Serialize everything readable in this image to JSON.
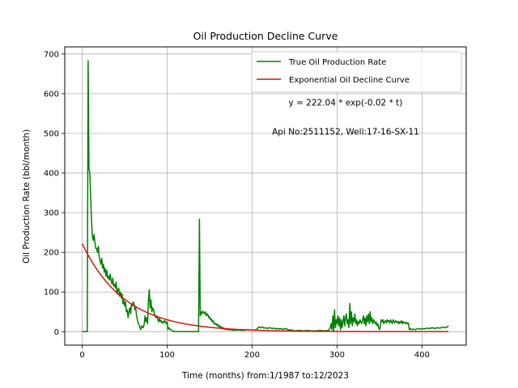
{
  "chart_data": {
    "type": "line",
    "title": "Oil Production Decline Curve",
    "xlabel": "Time (months) from:1/1987 to:12/2023",
    "ylabel": "Oil Production Rate (bbl/month)",
    "xlim": [
      -20.5,
      452
    ],
    "ylim": [
      -34,
      718
    ],
    "xticks": [
      0,
      100,
      200,
      300,
      400
    ],
    "yticks": [
      0,
      100,
      200,
      300,
      400,
      500,
      600,
      700
    ],
    "grid": true,
    "legend_position": "top-right",
    "annotations": [
      {
        "text": "y = 222.04 * exp(-0.02 * t)",
        "x": 310,
        "y": 570
      },
      {
        "text": "Api No:2511152, Well:17-16-SX-11",
        "x": 310,
        "y": 497
      }
    ],
    "series": [
      {
        "name": "True Oil Production Rate",
        "color": "#008000",
        "points": [
          [
            0,
            0
          ],
          [
            6,
            0
          ],
          [
            7,
            683
          ],
          [
            8,
            410
          ],
          [
            9,
            400
          ],
          [
            10,
            340
          ],
          [
            11,
            280
          ],
          [
            12,
            240
          ],
          [
            13,
            230
          ],
          [
            14,
            245
          ],
          [
            15,
            225
          ],
          [
            16,
            210
          ],
          [
            17,
            210
          ],
          [
            18,
            200
          ],
          [
            19,
            215
          ],
          [
            20,
            190
          ],
          [
            21,
            180
          ],
          [
            22,
            170
          ],
          [
            23,
            185
          ],
          [
            24,
            160
          ],
          [
            25,
            170
          ],
          [
            26,
            150
          ],
          [
            27,
            160
          ],
          [
            28,
            140
          ],
          [
            29,
            155
          ],
          [
            30,
            135
          ],
          [
            31,
            140
          ],
          [
            32,
            130
          ],
          [
            33,
            145
          ],
          [
            34,
            130
          ],
          [
            35,
            120
          ],
          [
            36,
            135
          ],
          [
            37,
            115
          ],
          [
            38,
            120
          ],
          [
            39,
            110
          ],
          [
            40,
            125
          ],
          [
            41,
            95
          ],
          [
            42,
            105
          ],
          [
            43,
            110
          ],
          [
            44,
            90
          ],
          [
            45,
            100
          ],
          [
            46,
            85
          ],
          [
            47,
            95
          ],
          [
            48,
            70
          ],
          [
            49,
            80
          ],
          [
            50,
            65
          ],
          [
            51,
            75
          ],
          [
            52,
            50
          ],
          [
            53,
            55
          ],
          [
            54,
            35
          ],
          [
            55,
            50
          ],
          [
            56,
            60
          ],
          [
            57,
            45
          ],
          [
            58,
            70
          ],
          [
            59,
            65
          ],
          [
            60,
            75
          ],
          [
            61,
            70
          ],
          [
            62,
            55
          ],
          [
            63,
            60
          ],
          [
            64,
            40
          ],
          [
            65,
            30
          ],
          [
            66,
            20
          ],
          [
            67,
            18
          ],
          [
            68,
            10
          ],
          [
            69,
            5
          ],
          [
            70,
            15
          ],
          [
            71,
            12
          ],
          [
            72,
            10
          ],
          [
            73,
            20
          ],
          [
            74,
            40
          ],
          [
            75,
            25
          ],
          [
            76,
            35
          ],
          [
            77,
            20
          ],
          [
            78,
            80
          ],
          [
            79,
            106
          ],
          [
            80,
            60
          ],
          [
            81,
            80
          ],
          [
            82,
            50
          ],
          [
            83,
            60
          ],
          [
            84,
            55
          ],
          [
            85,
            45
          ],
          [
            86,
            40
          ],
          [
            87,
            35
          ],
          [
            88,
            40
          ],
          [
            89,
            30
          ],
          [
            90,
            25
          ],
          [
            91,
            35
          ],
          [
            92,
            25
          ],
          [
            93,
            28
          ],
          [
            94,
            22
          ],
          [
            95,
            25
          ],
          [
            96,
            22
          ],
          [
            97,
            28
          ],
          [
            98,
            25
          ],
          [
            99,
            20
          ],
          [
            100,
            25
          ],
          [
            101,
            5
          ],
          [
            102,
            10
          ],
          [
            103,
            8
          ],
          [
            104,
            5
          ],
          [
            105,
            4
          ],
          [
            106,
            3
          ],
          [
            107,
            2
          ],
          [
            108,
            0
          ],
          [
            110,
            0
          ],
          [
            115,
            0
          ],
          [
            120,
            0
          ],
          [
            125,
            0
          ],
          [
            130,
            0
          ],
          [
            134,
            0
          ],
          [
            136,
            0
          ],
          [
            137,
            0
          ],
          [
            138,
            284
          ],
          [
            139,
            40
          ],
          [
            140,
            50
          ],
          [
            141,
            45
          ],
          [
            142,
            52
          ],
          [
            143,
            48
          ],
          [
            144,
            45
          ],
          [
            145,
            50
          ],
          [
            146,
            40
          ],
          [
            147,
            45
          ],
          [
            148,
            42
          ],
          [
            149,
            35
          ],
          [
            150,
            38
          ],
          [
            151,
            30
          ],
          [
            152,
            32
          ],
          [
            153,
            25
          ],
          [
            154,
            28
          ],
          [
            155,
            20
          ],
          [
            156,
            22
          ],
          [
            157,
            18
          ],
          [
            158,
            20
          ],
          [
            159,
            15
          ],
          [
            160,
            18
          ],
          [
            161,
            12
          ],
          [
            162,
            15
          ],
          [
            163,
            10
          ],
          [
            164,
            12
          ],
          [
            165,
            8
          ],
          [
            166,
            10
          ],
          [
            167,
            6
          ],
          [
            168,
            8
          ],
          [
            170,
            5
          ],
          [
            172,
            6
          ],
          [
            174,
            4
          ],
          [
            176,
            5
          ],
          [
            178,
            3
          ],
          [
            180,
            4
          ],
          [
            185,
            4
          ],
          [
            190,
            3
          ],
          [
            195,
            5
          ],
          [
            200,
            4
          ],
          [
            205,
            5
          ],
          [
            208,
            12
          ],
          [
            210,
            10
          ],
          [
            212,
            12
          ],
          [
            214,
            9
          ],
          [
            216,
            10
          ],
          [
            218,
            8
          ],
          [
            220,
            10
          ],
          [
            222,
            9
          ],
          [
            224,
            8
          ],
          [
            226,
            9
          ],
          [
            228,
            7
          ],
          [
            230,
            8
          ],
          [
            232,
            7
          ],
          [
            234,
            8
          ],
          [
            236,
            6
          ],
          [
            238,
            7
          ],
          [
            240,
            8
          ],
          [
            242,
            5
          ],
          [
            244,
            4
          ],
          [
            246,
            5
          ],
          [
            248,
            3
          ],
          [
            250,
            2
          ],
          [
            255,
            3
          ],
          [
            260,
            2
          ],
          [
            265,
            3
          ],
          [
            270,
            2
          ],
          [
            275,
            2
          ],
          [
            280,
            3
          ],
          [
            285,
            2
          ],
          [
            290,
            3
          ],
          [
            292,
            10
          ],
          [
            293,
            20
          ],
          [
            294,
            5
          ],
          [
            295,
            40
          ],
          [
            296,
            0
          ],
          [
            297,
            55
          ],
          [
            298,
            10
          ],
          [
            299,
            30
          ],
          [
            300,
            20
          ],
          [
            301,
            40
          ],
          [
            302,
            15
          ],
          [
            303,
            35
          ],
          [
            304,
            5
          ],
          [
            305,
            30
          ],
          [
            306,
            10
          ],
          [
            307,
            25
          ],
          [
            308,
            40
          ],
          [
            309,
            15
          ],
          [
            310,
            35
          ],
          [
            311,
            45
          ],
          [
            312,
            20
          ],
          [
            313,
            30
          ],
          [
            314,
            10
          ],
          [
            315,
            71
          ],
          [
            316,
            20
          ],
          [
            317,
            50
          ],
          [
            318,
            15
          ],
          [
            319,
            35
          ],
          [
            320,
            25
          ],
          [
            321,
            45
          ],
          [
            322,
            20
          ],
          [
            323,
            30
          ],
          [
            324,
            15
          ],
          [
            325,
            25
          ],
          [
            326,
            20
          ],
          [
            327,
            30
          ],
          [
            328,
            25
          ],
          [
            329,
            20
          ],
          [
            330,
            30
          ],
          [
            331,
            40
          ],
          [
            332,
            20
          ],
          [
            333,
            35
          ],
          [
            334,
            15
          ],
          [
            335,
            40
          ],
          [
            336,
            25
          ],
          [
            337,
            45
          ],
          [
            338,
            20
          ],
          [
            339,
            50
          ],
          [
            340,
            25
          ],
          [
            341,
            35
          ],
          [
            342,
            20
          ],
          [
            343,
            30
          ],
          [
            344,
            25
          ],
          [
            345,
            20
          ],
          [
            346,
            25
          ],
          [
            347,
            15
          ],
          [
            348,
            20
          ],
          [
            349,
            10
          ],
          [
            350,
            5
          ],
          [
            351,
            15
          ],
          [
            352,
            30
          ],
          [
            353,
            25
          ],
          [
            354,
            30
          ],
          [
            355,
            20
          ],
          [
            356,
            25
          ],
          [
            357,
            28
          ],
          [
            358,
            22
          ],
          [
            359,
            30
          ],
          [
            360,
            25
          ],
          [
            361,
            28
          ],
          [
            362,
            22
          ],
          [
            363,
            30
          ],
          [
            364,
            25
          ],
          [
            365,
            20
          ],
          [
            366,
            30
          ],
          [
            367,
            25
          ],
          [
            368,
            22
          ],
          [
            369,
            28
          ],
          [
            370,
            25
          ],
          [
            371,
            22
          ],
          [
            372,
            26
          ],
          [
            373,
            20
          ],
          [
            374,
            25
          ],
          [
            375,
            22
          ],
          [
            376,
            28
          ],
          [
            377,
            20
          ],
          [
            378,
            25
          ],
          [
            379,
            22
          ],
          [
            380,
            24
          ],
          [
            381,
            20
          ],
          [
            382,
            23
          ],
          [
            383,
            20
          ],
          [
            384,
            22
          ],
          [
            385,
            5
          ],
          [
            386,
            8
          ],
          [
            388,
            5
          ],
          [
            390,
            7
          ],
          [
            392,
            5
          ],
          [
            395,
            8
          ],
          [
            398,
            6
          ],
          [
            400,
            8
          ],
          [
            403,
            7
          ],
          [
            406,
            9
          ],
          [
            409,
            8
          ],
          [
            412,
            10
          ],
          [
            415,
            8
          ],
          [
            418,
            10
          ],
          [
            421,
            9
          ],
          [
            424,
            11
          ],
          [
            427,
            10
          ],
          [
            430,
            12
          ],
          [
            431,
            15
          ]
        ]
      },
      {
        "name": "Exponential Oil Decline Curve",
        "color": "#dd1111",
        "model": {
          "a": 222.04,
          "b": 0.02,
          "t_start": 0,
          "t_end": 431
        }
      }
    ]
  }
}
